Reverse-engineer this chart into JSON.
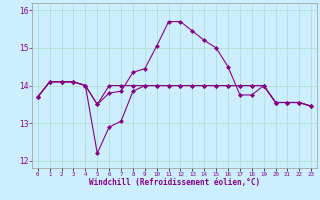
{
  "xlabel": "Windchill (Refroidissement éolien,°C)",
  "background_color": "#cceeff",
  "grid_color": "#aaddcc",
  "line_color": "#880088",
  "x_labels": [
    "0",
    "1",
    "2",
    "3",
    "4",
    "5",
    "6",
    "7",
    "8",
    "9",
    "10",
    "11",
    "12",
    "13",
    "14",
    "15",
    "16",
    "17",
    "18",
    "19",
    "20",
    "21",
    "22",
    "23"
  ],
  "ylim": [
    11.8,
    16.2
  ],
  "yticks": [
    12,
    13,
    14,
    15,
    16
  ],
  "series1": [
    13.7,
    14.1,
    14.1,
    14.1,
    14.0,
    13.5,
    13.8,
    13.85,
    14.35,
    14.45,
    15.05,
    15.7,
    15.7,
    15.45,
    15.2,
    15.0,
    14.5,
    13.75,
    13.75,
    14.0,
    13.55,
    13.55,
    13.55,
    13.45
  ],
  "series2": [
    13.7,
    14.1,
    14.1,
    14.1,
    14.0,
    12.2,
    12.9,
    13.05,
    13.85,
    14.0,
    14.0,
    14.0,
    14.0,
    14.0,
    14.0,
    14.0,
    14.0,
    14.0,
    14.0,
    14.0,
    13.55,
    13.55,
    13.55,
    13.45
  ],
  "series3": [
    13.7,
    14.1,
    14.1,
    14.1,
    14.0,
    13.5,
    14.0,
    14.0,
    14.0,
    14.0,
    14.0,
    14.0,
    14.0,
    14.0,
    14.0,
    14.0,
    14.0,
    14.0,
    14.0,
    14.0,
    13.55,
    13.55,
    13.55,
    13.45
  ]
}
